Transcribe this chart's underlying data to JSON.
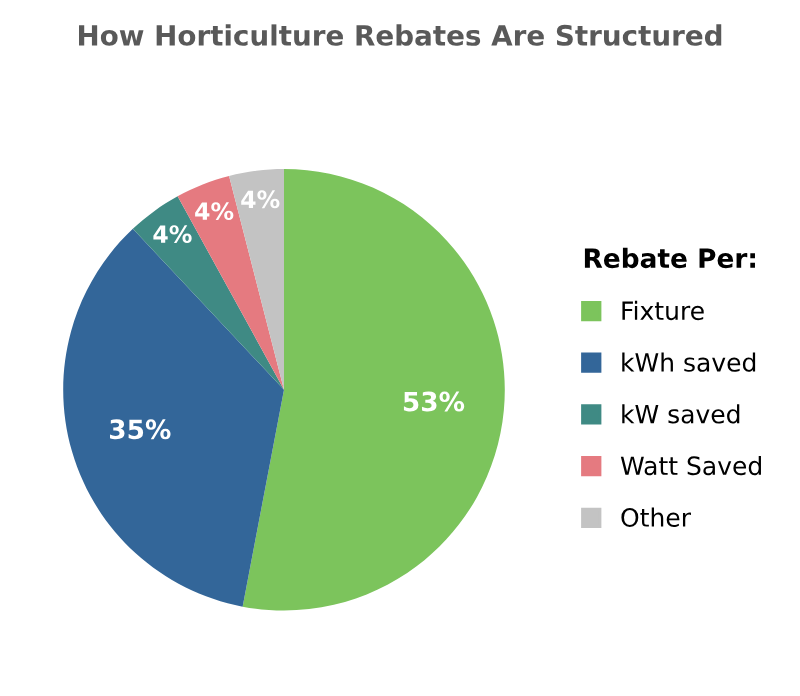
{
  "chart_data": {
    "type": "pie",
    "title": "How Horticulture Rebates Are Structured",
    "legend_title": "Rebate Per:",
    "categories": [
      "Fixture",
      "kWh saved",
      "kW saved",
      "Watt Saved",
      "Other"
    ],
    "values": [
      53,
      35,
      4,
      4,
      4
    ],
    "colors": [
      "#7cc45c",
      "#336699",
      "#3f8a84",
      "#e57a80",
      "#c3c3c3"
    ],
    "value_labels": [
      "53%",
      "35%",
      "4%",
      "4%",
      "4%"
    ],
    "legend": "right"
  }
}
